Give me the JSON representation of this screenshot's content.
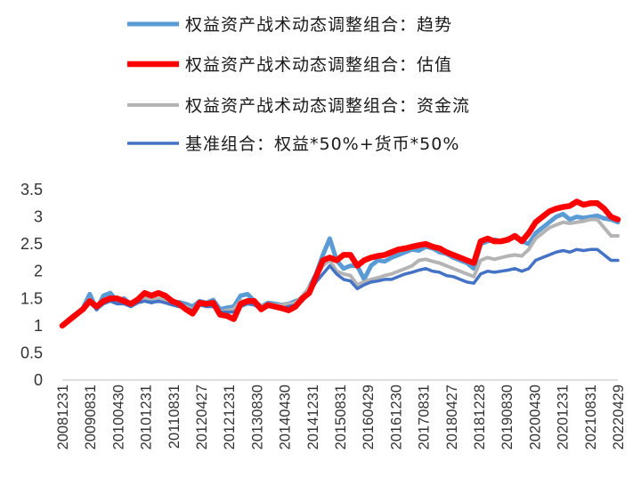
{
  "chart_data": {
    "type": "line",
    "title": "",
    "xlabel": "",
    "ylabel": "",
    "ylim": [
      0,
      3.5
    ],
    "yticks": [
      "0",
      "0.5",
      "1",
      "1.5",
      "2",
      "2.5",
      "3",
      "3.5"
    ],
    "grid": false,
    "legend_position": "top",
    "x_tick_labels": [
      "20081231",
      "20090831",
      "20100430",
      "20101231",
      "20110831",
      "20120427",
      "20121231",
      "20130830",
      "20140430",
      "20141231",
      "20150831",
      "20160429",
      "20161230",
      "20170831",
      "20180427",
      "20181228",
      "20190830",
      "20200430",
      "20201231",
      "20210831",
      "20220429"
    ],
    "x": [
      "2008-12",
      "2009-02",
      "2009-04",
      "2009-06",
      "2009-08",
      "2009-10",
      "2009-12",
      "2010-02",
      "2010-04",
      "2010-06",
      "2010-08",
      "2010-10",
      "2010-12",
      "2011-02",
      "2011-04",
      "2011-06",
      "2011-08",
      "2011-10",
      "2011-12",
      "2012-02",
      "2012-04",
      "2012-06",
      "2012-08",
      "2012-10",
      "2012-12",
      "2013-02",
      "2013-04",
      "2013-06",
      "2013-08",
      "2013-10",
      "2013-12",
      "2014-02",
      "2014-04",
      "2014-06",
      "2014-08",
      "2014-10",
      "2014-12",
      "2015-02",
      "2015-04",
      "2015-06",
      "2015-08",
      "2015-10",
      "2015-12",
      "2016-02",
      "2016-04",
      "2016-06",
      "2016-08",
      "2016-10",
      "2016-12",
      "2017-02",
      "2017-04",
      "2017-06",
      "2017-08",
      "2017-10",
      "2017-12",
      "2018-02",
      "2018-04",
      "2018-06",
      "2018-08",
      "2018-10",
      "2018-12",
      "2019-02",
      "2019-04",
      "2019-06",
      "2019-08",
      "2019-10",
      "2019-12",
      "2020-02",
      "2020-04",
      "2020-06",
      "2020-08",
      "2020-10",
      "2020-12",
      "2021-02",
      "2021-04",
      "2021-06",
      "2021-08",
      "2021-10",
      "2021-12",
      "2022-02",
      "2022-04",
      "2022-06"
    ],
    "series": [
      {
        "name": "权益资产战术动态调整组合：趋势",
        "color": "#5b9bd5",
        "values": [
          1.0,
          1.12,
          1.22,
          1.32,
          1.58,
          1.3,
          1.55,
          1.6,
          1.45,
          1.5,
          1.38,
          1.45,
          1.5,
          1.48,
          1.45,
          1.5,
          1.42,
          1.43,
          1.4,
          1.35,
          1.45,
          1.42,
          1.47,
          1.3,
          1.33,
          1.35,
          1.55,
          1.58,
          1.45,
          1.35,
          1.42,
          1.4,
          1.38,
          1.4,
          1.45,
          1.5,
          1.7,
          1.95,
          2.3,
          2.6,
          2.2,
          2.05,
          2.1,
          2.1,
          1.85,
          2.1,
          2.2,
          2.18,
          2.25,
          2.3,
          2.35,
          2.4,
          2.38,
          2.45,
          2.42,
          2.35,
          2.32,
          2.25,
          2.2,
          2.15,
          2.05,
          2.5,
          2.55,
          2.58,
          2.55,
          2.6,
          2.62,
          2.55,
          2.5,
          2.7,
          2.8,
          2.9,
          3.0,
          3.05,
          2.95,
          3.0,
          2.98,
          3.0,
          3.02,
          2.97,
          2.95,
          2.9
        ]
      },
      {
        "name": "权益资产战术动态调整组合：估值",
        "color": "#ff0000",
        "values": [
          1.0,
          1.1,
          1.2,
          1.3,
          1.45,
          1.35,
          1.45,
          1.5,
          1.5,
          1.45,
          1.4,
          1.48,
          1.6,
          1.55,
          1.6,
          1.55,
          1.45,
          1.4,
          1.3,
          1.22,
          1.42,
          1.4,
          1.42,
          1.2,
          1.18,
          1.12,
          1.4,
          1.45,
          1.45,
          1.3,
          1.38,
          1.35,
          1.32,
          1.28,
          1.35,
          1.5,
          1.6,
          1.9,
          2.2,
          2.25,
          2.2,
          2.3,
          2.3,
          2.1,
          2.2,
          2.25,
          2.28,
          2.3,
          2.35,
          2.4,
          2.42,
          2.45,
          2.48,
          2.5,
          2.45,
          2.42,
          2.35,
          2.3,
          2.25,
          2.2,
          2.15,
          2.55,
          2.6,
          2.55,
          2.55,
          2.58,
          2.65,
          2.55,
          2.7,
          2.9,
          3.0,
          3.1,
          3.15,
          3.18,
          3.2,
          3.28,
          3.22,
          3.25,
          3.25,
          3.15,
          3.0,
          2.95
        ]
      },
      {
        "name": "权益资产战术动态调整组合：资金流",
        "color": "#b4b4b4",
        "values": [
          1.0,
          1.1,
          1.2,
          1.3,
          1.48,
          1.35,
          1.45,
          1.5,
          1.48,
          1.45,
          1.4,
          1.45,
          1.5,
          1.5,
          1.5,
          1.45,
          1.4,
          1.38,
          1.35,
          1.3,
          1.4,
          1.38,
          1.4,
          1.25,
          1.28,
          1.3,
          1.45,
          1.45,
          1.42,
          1.35,
          1.4,
          1.38,
          1.38,
          1.4,
          1.42,
          1.55,
          1.7,
          1.9,
          2.1,
          2.2,
          2.0,
          1.95,
          1.92,
          1.75,
          1.8,
          1.85,
          1.88,
          1.92,
          1.95,
          2.0,
          2.05,
          2.1,
          2.2,
          2.22,
          2.18,
          2.15,
          2.1,
          2.05,
          2.0,
          1.95,
          1.9,
          2.2,
          2.25,
          2.22,
          2.25,
          2.28,
          2.3,
          2.28,
          2.4,
          2.6,
          2.7,
          2.8,
          2.85,
          2.9,
          2.88,
          2.9,
          2.92,
          2.95,
          2.95,
          2.8,
          2.65,
          2.65
        ]
      },
      {
        "name": "基准组合：权益*50%+货币*50%",
        "color": "#4472c4",
        "values": [
          1.0,
          1.08,
          1.18,
          1.28,
          1.42,
          1.3,
          1.4,
          1.45,
          1.4,
          1.4,
          1.35,
          1.42,
          1.45,
          1.42,
          1.45,
          1.42,
          1.38,
          1.35,
          1.32,
          1.28,
          1.38,
          1.35,
          1.35,
          1.25,
          1.25,
          1.25,
          1.35,
          1.4,
          1.38,
          1.3,
          1.35,
          1.33,
          1.32,
          1.35,
          1.38,
          1.45,
          1.6,
          1.8,
          1.95,
          2.1,
          1.95,
          1.85,
          1.82,
          1.68,
          1.75,
          1.8,
          1.82,
          1.85,
          1.85,
          1.9,
          1.95,
          1.98,
          2.02,
          2.05,
          2.0,
          1.98,
          1.92,
          1.9,
          1.85,
          1.8,
          1.78,
          1.95,
          2.0,
          1.98,
          2.0,
          2.02,
          2.05,
          2.0,
          2.05,
          2.2,
          2.25,
          2.3,
          2.35,
          2.38,
          2.35,
          2.4,
          2.38,
          2.4,
          2.4,
          2.3,
          2.2,
          2.2
        ]
      }
    ]
  }
}
